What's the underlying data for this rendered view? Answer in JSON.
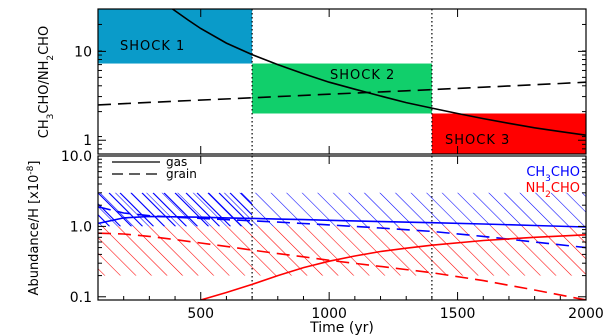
{
  "chart_data": [
    {
      "type": "line",
      "panel": "top",
      "ylabel": "CH3CHO/NH2CHO",
      "yscale": "log",
      "xlim": [
        100,
        2000
      ],
      "ylim": [
        0.7,
        30
      ],
      "yticks": [
        {
          "v": 1,
          "label": "1"
        },
        {
          "v": 10,
          "label": "10"
        }
      ],
      "shock_regions": [
        {
          "label": "SHOCK 1",
          "x": [
            100,
            700
          ],
          "y": [
            7.3,
            30
          ],
          "color": "#0a9bc9"
        },
        {
          "label": "SHOCK 2",
          "x": [
            700,
            1400
          ],
          "y": [
            2.0,
            7.3
          ],
          "color": "#11cf6b"
        },
        {
          "label": "SHOCK 3",
          "x": [
            1400,
            2000
          ],
          "y": [
            0.7,
            2.0
          ],
          "color": "#ff0000"
        }
      ],
      "vlines": [
        700,
        1400
      ],
      "series": [
        {
          "style": "solid",
          "color": "#000000",
          "x": [
            390,
            450,
            500,
            600,
            700,
            800,
            900,
            1000,
            1100,
            1200,
            1300,
            1400,
            1500,
            1600,
            1700,
            1800,
            1900,
            2000
          ],
          "y": [
            30,
            22.6,
            18.1,
            12.4,
            9.2,
            7.1,
            5.6,
            4.5,
            3.75,
            3.15,
            2.65,
            2.3,
            2.0,
            1.75,
            1.55,
            1.38,
            1.25,
            1.14
          ]
        },
        {
          "style": "dashed",
          "color": "#000000",
          "x": [
            100,
            400,
            700,
            1000,
            1300,
            1600,
            1900,
            2000
          ],
          "y": [
            2.5,
            2.75,
            3.0,
            3.3,
            3.6,
            3.95,
            4.35,
            4.5
          ]
        }
      ]
    },
    {
      "type": "line",
      "panel": "bottom",
      "xlabel": "Time (yr)",
      "ylabel": "Abundance/H [x10-8]",
      "yscale": "log",
      "xlim": [
        100,
        2000
      ],
      "ylim": [
        0.09,
        10
      ],
      "xticks": [
        500,
        1000,
        1500,
        2000
      ],
      "yticks": [
        {
          "v": 0.1,
          "label": "0.1"
        },
        {
          "v": 1,
          "label": "1.0"
        },
        {
          "v": 10,
          "label": "10.0"
        }
      ],
      "vlines": [
        700,
        1400
      ],
      "legend_lines": [
        {
          "style": "solid",
          "label": "gas"
        },
        {
          "style": "dashed",
          "label": "grain"
        }
      ],
      "legend_species": [
        {
          "name": "CH3CHO",
          "color": "#0000ff"
        },
        {
          "name": "NH2CHO",
          "color": "#ff0000"
        }
      ],
      "hatched_bands": [
        {
          "color": "#0000ff",
          "y": [
            1.0,
            3.0
          ],
          "direction": "ne"
        },
        {
          "color": "#ff0000",
          "y": [
            0.2,
            1.0
          ],
          "direction": "ne"
        }
      ],
      "series": [
        {
          "species": "CH3CHO",
          "phase": "gas",
          "style": "solid",
          "color": "#0000ff",
          "x": [
            100,
            200,
            300,
            400,
            500,
            600,
            700,
            800,
            900,
            1000,
            1200,
            1400,
            1600,
            1800,
            2000
          ],
          "y": [
            1.1,
            1.32,
            1.38,
            1.37,
            1.35,
            1.32,
            1.3,
            1.27,
            1.25,
            1.22,
            1.17,
            1.13,
            1.08,
            1.03,
            0.98
          ]
        },
        {
          "species": "CH3CHO",
          "phase": "grain",
          "style": "dashed",
          "color": "#0000ff",
          "x": [
            100,
            200,
            300,
            400,
            500,
            600,
            700,
            800,
            900,
            1000,
            1200,
            1400,
            1600,
            1800,
            2000
          ],
          "y": [
            1.9,
            1.55,
            1.42,
            1.35,
            1.3,
            1.25,
            1.2,
            1.15,
            1.1,
            1.05,
            0.95,
            0.85,
            0.72,
            0.6,
            0.5
          ]
        },
        {
          "species": "NH2CHO",
          "phase": "gas",
          "style": "solid",
          "color": "#ff0000",
          "x": [
            500,
            600,
            700,
            800,
            900,
            1000,
            1100,
            1200,
            1300,
            1400,
            1600,
            1800,
            2000
          ],
          "y": [
            0.09,
            0.115,
            0.15,
            0.2,
            0.26,
            0.32,
            0.38,
            0.44,
            0.49,
            0.54,
            0.63,
            0.7,
            0.76
          ]
        },
        {
          "species": "NH2CHO",
          "phase": "grain",
          "style": "dashed",
          "color": "#ff0000",
          "x": [
            100,
            200,
            300,
            400,
            500,
            600,
            700,
            800,
            900,
            1000,
            1200,
            1400,
            1600,
            1800,
            2000
          ],
          "y": [
            0.8,
            0.78,
            0.72,
            0.65,
            0.58,
            0.52,
            0.46,
            0.41,
            0.37,
            0.33,
            0.27,
            0.22,
            0.17,
            0.125,
            0.09
          ]
        }
      ]
    }
  ]
}
